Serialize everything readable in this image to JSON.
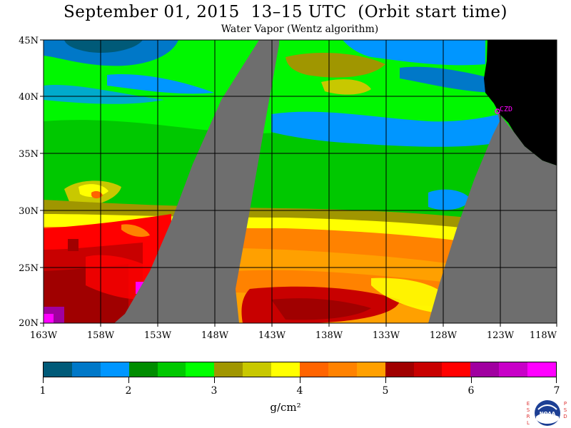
{
  "header": {
    "title": "September 01, 2015  13–15 UTC  (Orbit start time)",
    "subtitle": "Water Vapor (Wentz algorithm)"
  },
  "map": {
    "lat_labels": [
      "45N",
      "40N",
      "35N",
      "30N",
      "25N",
      "20N"
    ],
    "lon_labels": [
      "163W",
      "158W",
      "153W",
      "148W",
      "143W",
      "138W",
      "133W",
      "128W",
      "123W",
      "118W"
    ],
    "station_label": "CZD",
    "colors": {
      "land": "#000000",
      "no_data_gap": "#6e6e6e",
      "grid": "#000000",
      "station": "#ff00ff"
    }
  },
  "colorbar": {
    "colors": [
      "#005a78",
      "#0078c8",
      "#0096ff",
      "#008c00",
      "#00c800",
      "#00ff00",
      "#a09600",
      "#c8c800",
      "#ffff00",
      "#ff6400",
      "#ff8200",
      "#ffa000",
      "#a00000",
      "#c80000",
      "#ff0000",
      "#a000a0",
      "#c800c8",
      "#ff00ff"
    ],
    "tick_labels": [
      "1",
      "2",
      "3",
      "4",
      "5",
      "6",
      "7"
    ],
    "units": "g/cm²"
  },
  "logo": {
    "left_letters": "ESRL",
    "right_letters": "PSD",
    "emblem_text": "NOAA"
  }
}
